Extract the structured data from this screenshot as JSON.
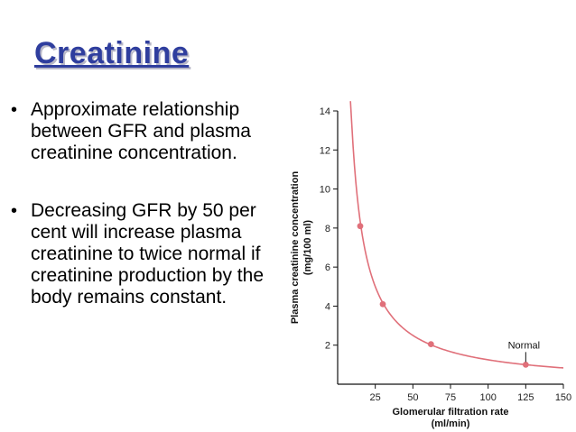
{
  "slide": {
    "title": "Creatinine",
    "bullets": [
      "Approximate relationship between GFR and plasma creatinine concentration.",
      "Decreasing GFR by 50 per cent will increase plasma creatinine to twice normal if creatinine production by the body remains constant."
    ]
  },
  "chart_data": {
    "type": "line",
    "title": "",
    "xlabel": "Glomerular filtration rate",
    "xlabel_units": "(ml/min)",
    "ylabel": "Plasma creatinine concentration",
    "ylabel_units": "(mg/100 ml)",
    "xlim": [
      0,
      150
    ],
    "ylim": [
      0,
      14
    ],
    "xticks": [
      25,
      50,
      75,
      100,
      125,
      150
    ],
    "yticks": [
      2,
      4,
      6,
      8,
      10,
      12,
      14
    ],
    "grid": false,
    "series": [
      {
        "color": "#e0707a",
        "curve": {
          "form": "y = k / x",
          "k": 125,
          "x_range": [
            8.5,
            150
          ]
        },
        "points": [
          {
            "x": 15,
            "y": 8.1
          },
          {
            "x": 30,
            "y": 4.1
          },
          {
            "x": 62,
            "y": 2.05
          },
          {
            "x": 125,
            "y": 1.0
          }
        ]
      }
    ],
    "annotations": [
      {
        "text": "Normal",
        "x": 125,
        "y": 1.0
      }
    ]
  }
}
